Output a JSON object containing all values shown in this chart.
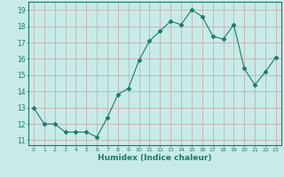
{
  "x": [
    0,
    1,
    2,
    3,
    4,
    5,
    6,
    7,
    8,
    9,
    10,
    11,
    12,
    13,
    14,
    15,
    16,
    17,
    18,
    19,
    20,
    21,
    22,
    23
  ],
  "y": [
    13.0,
    12.0,
    12.0,
    11.5,
    11.5,
    11.5,
    11.2,
    12.4,
    13.8,
    14.2,
    15.9,
    17.1,
    17.7,
    18.3,
    18.1,
    19.0,
    18.6,
    17.4,
    17.2,
    18.1,
    15.4,
    14.4,
    15.2,
    16.1
  ],
  "line_color": "#1a7a6a",
  "marker": "D",
  "marker_color": "#1a7a6a",
  "bg_color": "#c8ebe8",
  "grid_color": "#c4b0b0",
  "xlabel": "Humidex (Indice chaleur)",
  "ylabel_ticks": [
    11,
    12,
    13,
    14,
    15,
    16,
    17,
    18,
    19
  ],
  "xlim": [
    -0.5,
    23.5
  ],
  "ylim": [
    10.7,
    19.5
  ]
}
